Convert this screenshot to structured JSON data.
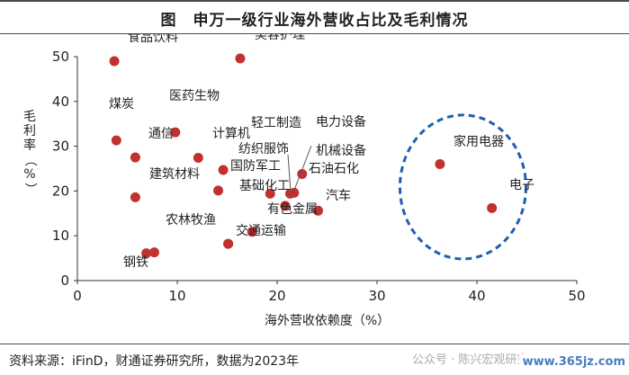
{
  "figure": {
    "title": "图　申万一级行业海外营收占比及毛利情况"
  },
  "source_text": "资料来源：iFinD，财通证券研究所，数据为2023年",
  "watermark_text": "公众号 · 陈兴宏观研究",
  "site_badge": "www.365jz.com",
  "colors": {
    "point": "#c0312f",
    "highlight_circle": "#1f5fae",
    "axis": "#333333"
  },
  "chart_data": {
    "type": "scatter",
    "title": "申万一级行业海外营收占比及毛利情况",
    "xlabel": "海外营收依赖度（%）",
    "ylabel": "毛利率（%）",
    "xlim": [
      0,
      50
    ],
    "ylim": [
      0,
      50
    ],
    "xticks": [
      0,
      10,
      20,
      30,
      40,
      50
    ],
    "yticks": [
      0,
      10,
      20,
      30,
      40,
      50
    ],
    "grid": false,
    "points": [
      {
        "label": "食品饮料",
        "x": 3.7,
        "y": 49.0
      },
      {
        "label": "美容护理",
        "x": 16.3,
        "y": 49.6
      },
      {
        "label": "煤炭",
        "x": 3.9,
        "y": 31.3
      },
      {
        "label": "医药生物",
        "x": 9.8,
        "y": 33.1
      },
      {
        "label": "通信",
        "x": 5.8,
        "y": 27.5
      },
      {
        "label": "计算机",
        "x": 12.1,
        "y": 27.4
      },
      {
        "label": "纺织服饰",
        "x": 14.6,
        "y": 24.7
      },
      {
        "label": "建筑材料",
        "x": 5.8,
        "y": 18.6
      },
      {
        "label": "国防军工",
        "x": 14.1,
        "y": 20.1
      },
      {
        "label": "轻工制造",
        "x": 21.3,
        "y": 19.4
      },
      {
        "label": "电力设备",
        "x": 21.7,
        "y": 19.6
      },
      {
        "label": "机械设备",
        "x": 22.5,
        "y": 23.8
      },
      {
        "label": "石油石化",
        "x": 19.3,
        "y": 19.4
      },
      {
        "label": "基础化工",
        "x": 20.8,
        "y": 16.7
      },
      {
        "label": "汽车",
        "x": 24.1,
        "y": 15.6
      },
      {
        "label": "有色金属",
        "x": 17.5,
        "y": 10.9
      },
      {
        "label": "农林牧渔",
        "x": 15.1,
        "y": 8.2
      },
      {
        "label": "交通运输",
        "x": 15.1,
        "y": 8.2
      },
      {
        "label": "钢铁",
        "x": 6.9,
        "y": 6.1
      },
      {
        "label": "钢铁",
        "x": 7.7,
        "y": 6.3
      },
      {
        "label": "家用电器",
        "x": 36.3,
        "y": 26.0
      },
      {
        "label": "电子",
        "x": 41.5,
        "y": 16.2
      }
    ]
  }
}
